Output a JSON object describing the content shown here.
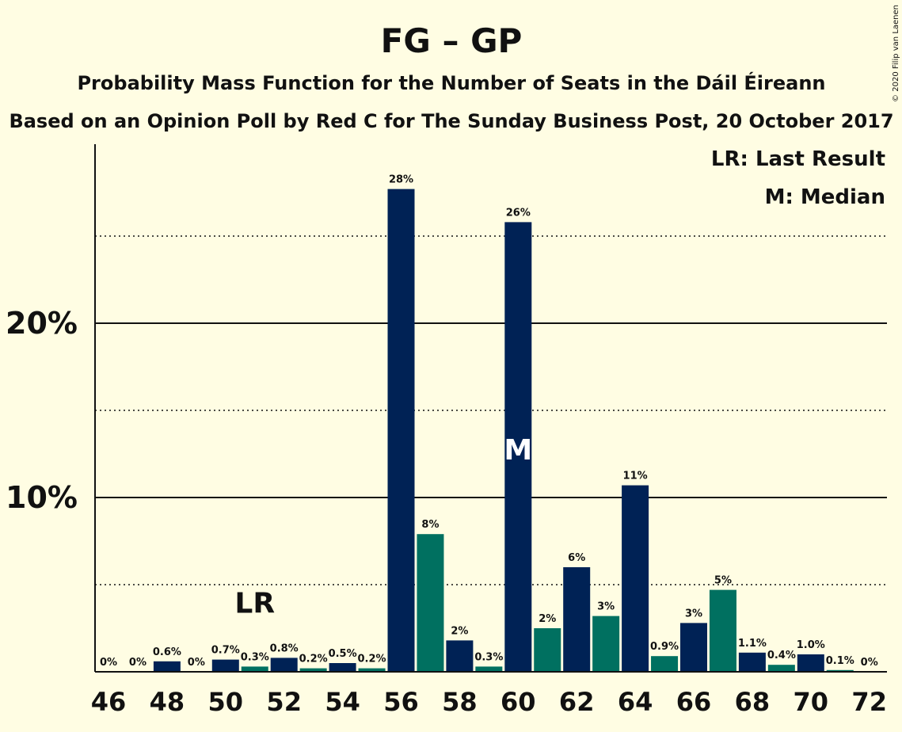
{
  "chart_data": {
    "type": "bar",
    "title": "FG – GP",
    "subtitle": "Probability Mass Function for the Number of Seats in the Dáil Éireann",
    "subtitle2": "Based on an Opinion Poll by Red C for The Sunday Business Post, 20 October 2017",
    "copyright": "© 2020 Filip van Laenen",
    "legend": {
      "lr": "LR: Last Result",
      "m": "M: Median",
      "placement": "top-right"
    },
    "xlabel": "",
    "ylabel": "",
    "ylim": [
      0,
      30
    ],
    "y_ticks": [
      {
        "value": 10,
        "label": "10%"
      },
      {
        "value": 20,
        "label": "20%"
      }
    ],
    "minor_grid": [
      5,
      15,
      25
    ],
    "x_tick_labels": [
      "46",
      "48",
      "50",
      "52",
      "54",
      "56",
      "58",
      "60",
      "62",
      "64",
      "66",
      "68",
      "70",
      "72"
    ],
    "categories": [
      46,
      47,
      48,
      49,
      50,
      51,
      52,
      53,
      54,
      55,
      56,
      57,
      58,
      59,
      60,
      61,
      62,
      63,
      64,
      65,
      66,
      67,
      68,
      69,
      70,
      71,
      72
    ],
    "values": [
      0,
      0,
      0.6,
      0,
      0.7,
      0.3,
      0.8,
      0.2,
      0.5,
      0.2,
      27.7,
      7.9,
      1.8,
      0.3,
      25.8,
      2.5,
      6.0,
      3.2,
      10.7,
      0.9,
      2.8,
      4.7,
      1.1,
      0.4,
      1.0,
      0.1,
      0
    ],
    "labels": [
      "0%",
      "0%",
      "0.6%",
      "0%",
      "0.7%",
      "0.3%",
      "0.8%",
      "0.2%",
      "0.5%",
      "0.2%",
      "28%",
      "8%",
      "2%",
      "0.3%",
      "26%",
      "2%",
      "6%",
      "3%",
      "11%",
      "0.9%",
      "3%",
      "5%",
      "1.1%",
      "0.4%",
      "1.0%",
      "0.1%",
      "0%"
    ],
    "last_result": {
      "seat": 51,
      "label": "LR"
    },
    "median": {
      "seat": 60,
      "label": "M"
    },
    "colors": {
      "even": "#002255",
      "odd": "#007060",
      "background": "#fffde3"
    }
  }
}
